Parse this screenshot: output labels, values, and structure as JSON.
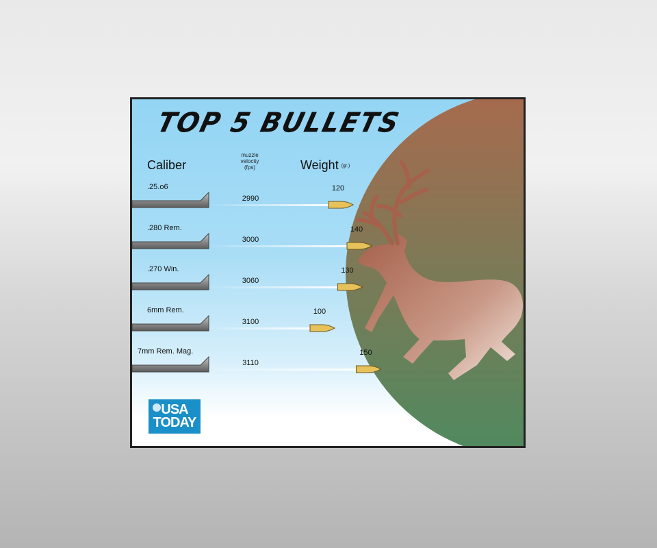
{
  "chart_data": {
    "type": "table",
    "title": "TOP  5 BULLETS",
    "columns": {
      "caliber": "Caliber",
      "velocity_lines": [
        "muzzle",
        "velocity",
        "(fps)"
      ],
      "weight": "Weight",
      "weight_unit": "(gr.)"
    },
    "rows": [
      {
        "caliber": ".25.o6",
        "velocity": "2990",
        "weight": "120"
      },
      {
        "caliber": ".280 Rem.",
        "velocity": "3000",
        "weight": "140"
      },
      {
        "caliber": ".270 Win.",
        "velocity": "3060",
        "weight": "130"
      },
      {
        "caliber": "6mm Rem.",
        "velocity": "3100",
        "weight": "100"
      },
      {
        "caliber": "7mm Rem. Mag.",
        "velocity": "3110",
        "weight": "150"
      }
    ]
  },
  "logo": {
    "line1": "USA",
    "line2": "TODAY"
  },
  "colors": {
    "sky_top": "#93d5f4",
    "disc_top": "#a86a4e",
    "disc_bottom": "#4e8a5f",
    "deer": "#a5614b",
    "bullet": "#e7c25a",
    "barrel": "#8e8e8e",
    "logo_bg": "#1a8fc8"
  }
}
